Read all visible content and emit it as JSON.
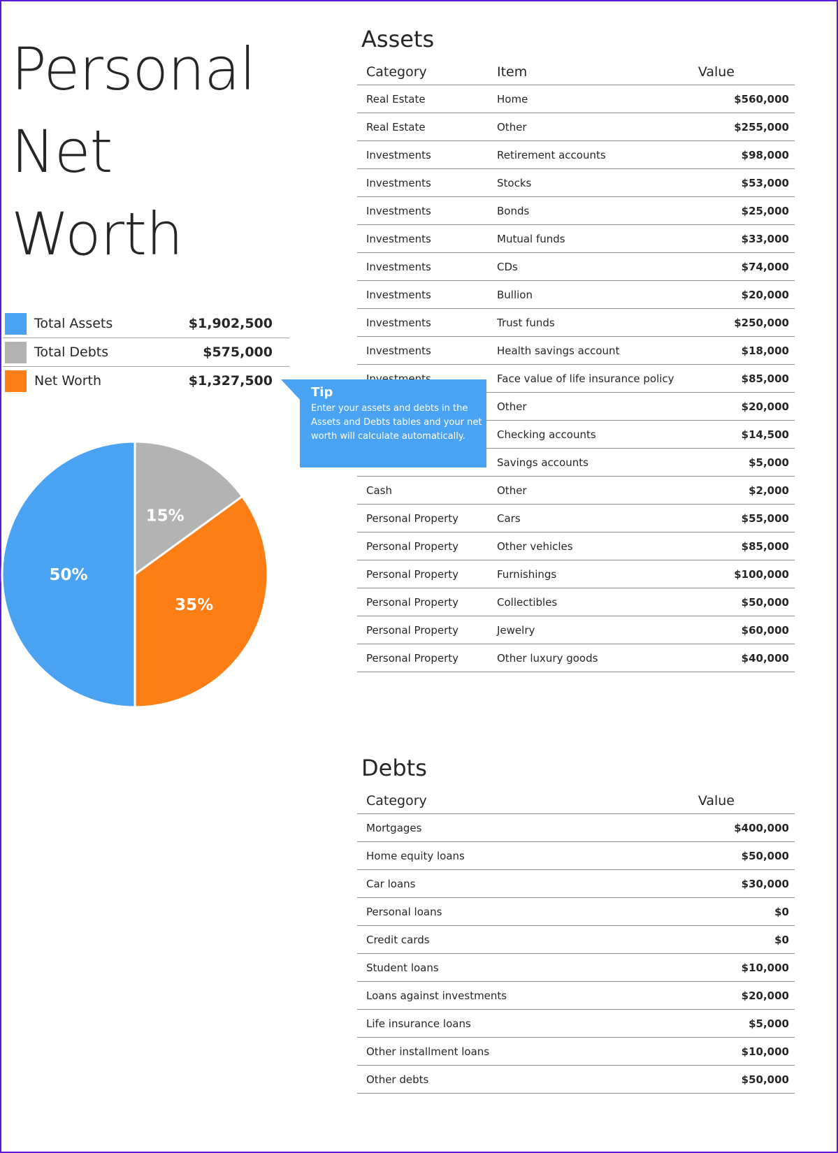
{
  "title_lines": [
    "Personal",
    "Net",
    "Worth"
  ],
  "summary": [
    {
      "label": "Total Assets",
      "value": "$1,902,500",
      "color": "#4aa3f2"
    },
    {
      "label": "Total Debts",
      "value": "$575,000",
      "color": "#b3b3b3"
    },
    {
      "label": "Net Worth",
      "value": "$1,327,500",
      "color": "#fd7e14"
    }
  ],
  "chart_data": {
    "type": "pie",
    "slices": [
      {
        "label": "15%",
        "value": 15,
        "color": "#b3b3b3"
      },
      {
        "label": "35%",
        "value": 35,
        "color": "#fd7e14"
      },
      {
        "label": "50%",
        "value": 50,
        "color": "#4aa3f2"
      }
    ]
  },
  "tip": {
    "heading": "Tip",
    "body": "Enter your assets and debts in the Assets and Debts tables and your net worth will calculate automatically."
  },
  "assets": {
    "title": "Assets",
    "headers": [
      "Category",
      "Item",
      "Value"
    ],
    "rows": [
      [
        "Real Estate",
        "Home",
        "$560,000"
      ],
      [
        "Real Estate",
        "Other",
        "$255,000"
      ],
      [
        "Investments",
        "Retirement accounts",
        "$98,000"
      ],
      [
        "Investments",
        "Stocks",
        "$53,000"
      ],
      [
        "Investments",
        "Bonds",
        "$25,000"
      ],
      [
        "Investments",
        "Mutual funds",
        "$33,000"
      ],
      [
        "Investments",
        "CDs",
        "$74,000"
      ],
      [
        "Investments",
        "Bullion",
        "$20,000"
      ],
      [
        "Investments",
        "Trust funds",
        "$250,000"
      ],
      [
        "Investments",
        "Health savings account",
        "$18,000"
      ],
      [
        "Investments",
        "Face value of life insurance policy",
        "$85,000"
      ],
      [
        "",
        "Other",
        "$20,000"
      ],
      [
        "",
        "Checking accounts",
        "$14,500"
      ],
      [
        "",
        "Savings accounts",
        "$5,000"
      ],
      [
        "Cash",
        "Other",
        "$2,000"
      ],
      [
        "Personal Property",
        "Cars",
        "$55,000"
      ],
      [
        "Personal Property",
        "Other vehicles",
        "$85,000"
      ],
      [
        "Personal Property",
        "Furnishings",
        "$100,000"
      ],
      [
        "Personal Property",
        "Collectibles",
        "$50,000"
      ],
      [
        "Personal Property",
        "Jewelry",
        "$60,000"
      ],
      [
        "Personal Property",
        "Other luxury goods",
        "$40,000"
      ]
    ]
  },
  "debts": {
    "title": "Debts",
    "headers": [
      "Category",
      "Value"
    ],
    "rows": [
      [
        "Mortgages",
        "$400,000"
      ],
      [
        "Home equity loans",
        "$50,000"
      ],
      [
        "Car loans",
        "$30,000"
      ],
      [
        "Personal loans",
        "$0"
      ],
      [
        "Credit cards",
        "$0"
      ],
      [
        "Student loans",
        "$10,000"
      ],
      [
        "Loans against investments",
        "$20,000"
      ],
      [
        "Life insurance loans",
        "$5,000"
      ],
      [
        "Other installment loans",
        "$10,000"
      ],
      [
        "Other debts",
        "$50,000"
      ]
    ]
  }
}
